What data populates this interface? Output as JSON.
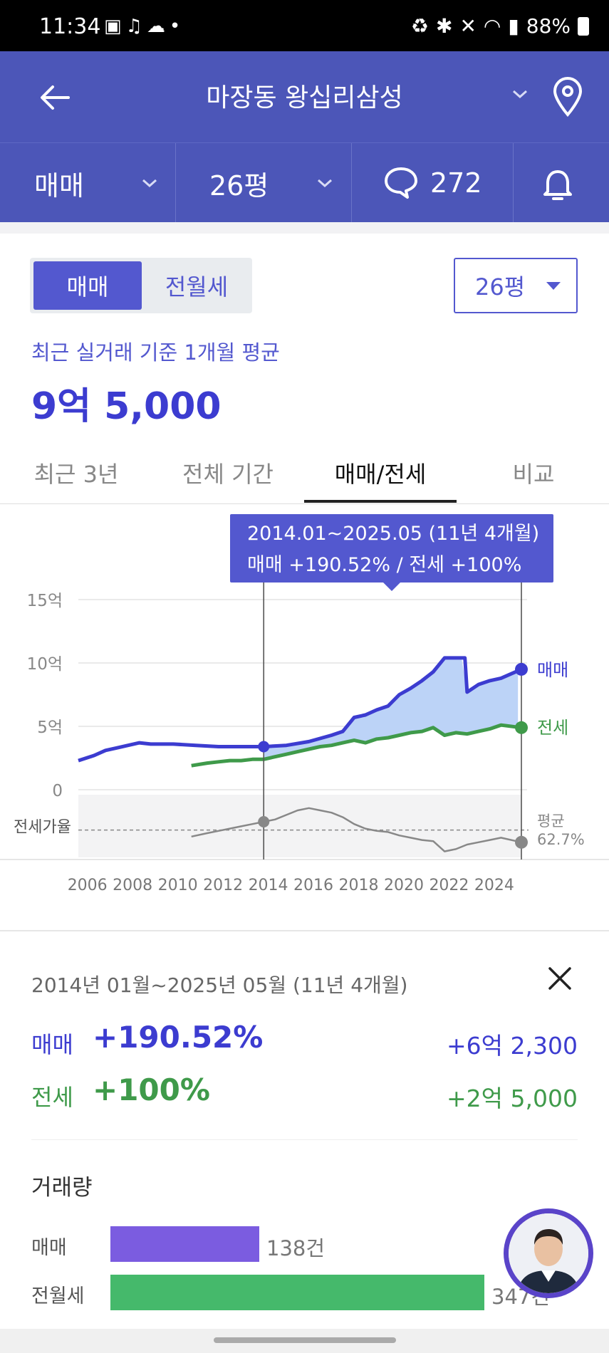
{
  "status_bar": {
    "time": "11:34",
    "battery": "88%",
    "left_icons": [
      "image-icon",
      "voice-icon",
      "weather-icon",
      "dot"
    ],
    "right_icons": [
      "recycle-icon",
      "bluetooth-icon",
      "mute-icon",
      "wifi-icon",
      "signal-icon"
    ]
  },
  "header": {
    "title": "마장동 왕십리삼성",
    "back_icon": "back-arrow-icon",
    "map_icon": "location-pin-icon"
  },
  "subbar": {
    "trade_type": "매매",
    "size": "26평",
    "comment_count": "272",
    "bell_icon": "bell-icon"
  },
  "toggle": {
    "sale": "매매",
    "rent": "전월세",
    "size_select": "26평"
  },
  "average": {
    "label": "최근 실거래 기준 1개월 평균",
    "value": "9억 5,000"
  },
  "tabs": [
    {
      "label": "최근 3년",
      "active": false
    },
    {
      "label": "전체 기간",
      "active": false
    },
    {
      "label": "매매/전세",
      "active": true
    },
    {
      "label": "비교",
      "active": false
    }
  ],
  "tooltip": {
    "line1": "2014.01~2025.05 (11년 4개월)",
    "line2": "매매 +190.52%  /  전세 +100%"
  },
  "colors": {
    "brand": "#4c56b8",
    "accent": "#5358cf",
    "sale": "#3c3cd0",
    "jeonse": "#3f9a4a",
    "ratio": "#888888"
  },
  "chart_data": {
    "type": "line",
    "x_ticks": [
      "2006",
      "2008",
      "2010",
      "2012",
      "2014",
      "2016",
      "2018",
      "2020",
      "2022",
      "2024"
    ],
    "y_ticks": [
      "15억",
      "10억",
      "5억",
      "0"
    ],
    "ylim": [
      0,
      15
    ],
    "ratio_label": "전세가율",
    "avg_label": "평균",
    "avg_value": "62.7%",
    "selection": [
      "2014.01",
      "2025.05"
    ],
    "series": [
      {
        "name": "매매",
        "x": [
          2005.8,
          2006.5,
          2007,
          2007.5,
          2008,
          2008.5,
          2009,
          2010,
          2011,
          2012,
          2013,
          2014,
          2015,
          2016,
          2017,
          2017.5,
          2018,
          2018.5,
          2019,
          2019.5,
          2020,
          2020.5,
          2021,
          2021.5,
          2022,
          2022.9,
          2023,
          2023.5,
          2024,
          2024.5,
          2025.4
        ],
        "values": [
          2.3,
          2.7,
          3.1,
          3.3,
          3.5,
          3.7,
          3.6,
          3.6,
          3.5,
          3.4,
          3.4,
          3.4,
          3.5,
          3.8,
          4.3,
          4.6,
          5.7,
          5.9,
          6.3,
          6.6,
          7.5,
          8.0,
          8.6,
          9.3,
          10.4,
          10.4,
          7.7,
          8.3,
          8.6,
          8.8,
          9.5
        ]
      },
      {
        "name": "전세",
        "x": [
          2010.8,
          2011.5,
          2012,
          2012.5,
          2013,
          2013.5,
          2014,
          2014.5,
          2015,
          2015.5,
          2016,
          2016.5,
          2017,
          2017.5,
          2018,
          2018.5,
          2019,
          2019.5,
          2020,
          2020.5,
          2021,
          2021.5,
          2022,
          2022.5,
          2023,
          2023.5,
          2024,
          2024.5,
          2025.4
        ],
        "values": [
          1.9,
          2.1,
          2.2,
          2.3,
          2.3,
          2.4,
          2.4,
          2.6,
          2.8,
          3.0,
          3.2,
          3.4,
          3.5,
          3.7,
          3.9,
          3.7,
          4.0,
          4.1,
          4.3,
          4.5,
          4.6,
          4.9,
          4.3,
          4.5,
          4.4,
          4.6,
          4.8,
          5.1,
          4.9
        ]
      },
      {
        "name": "전세가율",
        "x": [
          2010.8,
          2011.5,
          2012,
          2012.5,
          2013,
          2013.5,
          2014,
          2014.5,
          2015,
          2015.5,
          2016,
          2016.5,
          2017,
          2017.5,
          2018,
          2018.5,
          2019,
          2019.5,
          2020,
          2020.5,
          2021,
          2021.5,
          2022,
          2022.5,
          2023,
          2023.5,
          2024,
          2024.5,
          2025.4
        ],
        "values": [
          57,
          60,
          62,
          64,
          66,
          68,
          70,
          72,
          76,
          80,
          82,
          80,
          78,
          74,
          68,
          64,
          62,
          61,
          58,
          56,
          54,
          53,
          44,
          46,
          50,
          52,
          54,
          56,
          52
        ]
      }
    ]
  },
  "summary": {
    "period": "2014년 01월~2025년 05월 (11년 4개월)",
    "sale_label": "매매",
    "sale_pct": "+190.52%",
    "sale_amount": "+6억 2,300",
    "jeonse_label": "전세",
    "jeonse_pct": "+100%",
    "jeonse_amount": "+2억 5,000"
  },
  "volume": {
    "title": "거래량",
    "rows": [
      {
        "label": "매매",
        "count": "138건",
        "value": 138,
        "color": "#7b5ce0"
      },
      {
        "label": "전월세",
        "count": "347건",
        "value": 347,
        "color": "#45b96b"
      }
    ]
  }
}
